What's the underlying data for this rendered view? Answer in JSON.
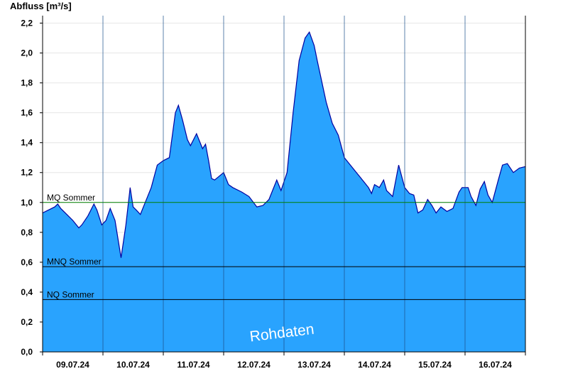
{
  "chart_data": {
    "type": "area",
    "ylabel": "Abfluss [m³/s]",
    "xlabel": "",
    "ylim": [
      0,
      2.25
    ],
    "y_ticks": [
      0.0,
      0.2,
      0.4,
      0.6,
      0.8,
      1.0,
      1.2,
      1.4,
      1.6,
      1.8,
      2.0,
      2.2
    ],
    "y_tick_labels": [
      "0,0",
      "0,2",
      "0,4",
      "0,6",
      "0,8",
      "1,0",
      "1,2",
      "1,4",
      "1,6",
      "1,8",
      "2,0",
      "2,2"
    ],
    "x_range_days": [
      0,
      8
    ],
    "x_tick_labels": [
      "09.07.24",
      "10.07.24",
      "11.07.24",
      "12.07.24",
      "13.07.24",
      "14.07.24",
      "15.07.24",
      "16.07.24"
    ],
    "fill_color": "#29A3FE",
    "line_color": "#0000A0",
    "grid": true,
    "reference_lines": [
      {
        "label": "MQ Sommer",
        "value": 1.0,
        "color": "#008000"
      },
      {
        "label": "MNQ Sommer",
        "value": 0.57,
        "color": "#000000"
      },
      {
        "label": "NQ Sommer",
        "value": 0.35,
        "color": "#000000"
      }
    ],
    "watermark": "Rohdaten",
    "series": [
      {
        "x": [
          0,
          0.1,
          0.2,
          0.25,
          0.3,
          0.4,
          0.5,
          0.6,
          0.65,
          0.75,
          0.85,
          0.9,
          0.98,
          1.05,
          1.12,
          1.2,
          1.3,
          1.38,
          1.45,
          1.5,
          1.55,
          1.62,
          1.7,
          1.8,
          1.9,
          2.0,
          2.1,
          2.2,
          2.25,
          2.32,
          2.4,
          2.45,
          2.55,
          2.65,
          2.7,
          2.75,
          2.8,
          2.85,
          3.0,
          3.08,
          3.15,
          3.3,
          3.42,
          3.55,
          3.65,
          3.75,
          3.88,
          3.95,
          4.05,
          4.15,
          4.25,
          4.35,
          4.42,
          4.5,
          4.55,
          4.62,
          4.7,
          4.8,
          4.9,
          5.0,
          5.1,
          5.2,
          5.3,
          5.4,
          5.45,
          5.5,
          5.58,
          5.65,
          5.7,
          5.8,
          5.9,
          6.0,
          6.08,
          6.15,
          6.22,
          6.3,
          6.38,
          6.45,
          6.52,
          6.6,
          6.7,
          6.8,
          6.9,
          6.95,
          7.05,
          7.1,
          7.18,
          7.25,
          7.32,
          7.38,
          7.45,
          7.55,
          7.62,
          7.7,
          7.8,
          7.9,
          8.0
        ],
        "values": [
          0.93,
          0.95,
          0.97,
          0.99,
          0.96,
          0.92,
          0.88,
          0.83,
          0.85,
          0.91,
          0.99,
          0.95,
          0.85,
          0.88,
          0.96,
          0.88,
          0.63,
          0.85,
          1.1,
          0.97,
          0.95,
          0.92,
          1.0,
          1.1,
          1.25,
          1.28,
          1.3,
          1.6,
          1.65,
          1.55,
          1.42,
          1.38,
          1.46,
          1.36,
          1.39,
          1.28,
          1.16,
          1.15,
          1.2,
          1.12,
          1.1,
          1.07,
          1.04,
          0.97,
          0.98,
          1.02,
          1.15,
          1.08,
          1.2,
          1.6,
          1.95,
          2.1,
          2.14,
          2.05,
          1.95,
          1.82,
          1.67,
          1.53,
          1.45,
          1.3,
          1.25,
          1.2,
          1.15,
          1.1,
          1.06,
          1.12,
          1.1,
          1.15,
          1.08,
          1.04,
          1.25,
          1.1,
          1.06,
          1.05,
          0.93,
          0.95,
          1.02,
          0.98,
          0.93,
          0.97,
          0.94,
          0.96,
          1.07,
          1.1,
          1.1,
          1.04,
          0.98,
          1.09,
          1.14,
          1.05,
          1.0,
          1.15,
          1.25,
          1.26,
          1.2,
          1.23,
          1.24
        ]
      }
    ]
  }
}
